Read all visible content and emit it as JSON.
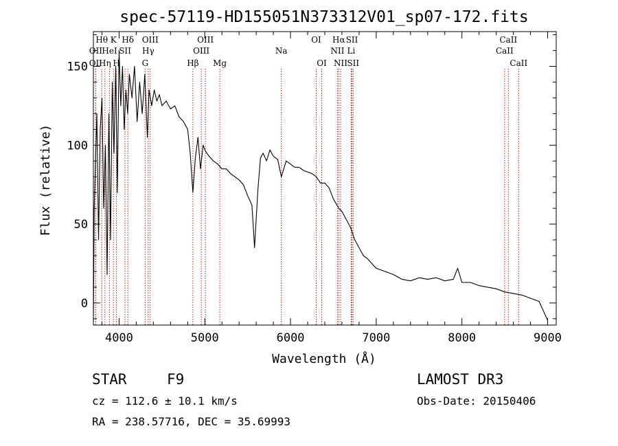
{
  "chart_data": {
    "type": "line",
    "title": "spec-57119-HD155051N373312V01_sp07-172.fits",
    "xlabel": "Wavelength (Å)",
    "ylabel": "Flux (relative)",
    "xlim": [
      3700,
      9100
    ],
    "ylim": [
      -14,
      172
    ],
    "xticks": [
      4000,
      5000,
      6000,
      7000,
      8000,
      9000
    ],
    "yticks": [
      0,
      50,
      100,
      150
    ],
    "series": [
      {
        "name": "flux",
        "x": [
          3700,
          3710,
          3725,
          3740,
          3760,
          3780,
          3800,
          3820,
          3840,
          3860,
          3880,
          3900,
          3920,
          3940,
          3960,
          3980,
          4000,
          4020,
          4040,
          4060,
          4080,
          4100,
          4120,
          4150,
          4180,
          4210,
          4240,
          4270,
          4300,
          4330,
          4350,
          4380,
          4410,
          4440,
          4470,
          4500,
          4550,
          4600,
          4650,
          4700,
          4750,
          4800,
          4830,
          4861,
          4890,
          4920,
          4950,
          4980,
          5010,
          5050,
          5100,
          5150,
          5200,
          5250,
          5300,
          5350,
          5400,
          5450,
          5500,
          5550,
          5580,
          5620,
          5650,
          5680,
          5720,
          5760,
          5800,
          5850,
          5893,
          5950,
          6000,
          6050,
          6100,
          6150,
          6200,
          6250,
          6300,
          6350,
          6400,
          6450,
          6500,
          6563,
          6600,
          6650,
          6700,
          6750,
          6800,
          6850,
          6900,
          6950,
          7000,
          7100,
          7200,
          7300,
          7400,
          7500,
          7600,
          7700,
          7800,
          7900,
          7950,
          8000,
          8100,
          8200,
          8300,
          8400,
          8500,
          8600,
          8700,
          8800,
          8900,
          8950,
          9000
        ],
        "y": [
          -12,
          60,
          90,
          120,
          40,
          110,
          130,
          60,
          100,
          18,
          120,
          40,
          140,
          95,
          150,
          70,
          160,
          125,
          150,
          110,
          135,
          120,
          145,
          130,
          150,
          115,
          140,
          120,
          145,
          105,
          135,
          125,
          135,
          128,
          132,
          125,
          128,
          123,
          125,
          118,
          115,
          110,
          95,
          70,
          92,
          105,
          85,
          100,
          96,
          93,
          90,
          88,
          85,
          85,
          82,
          80,
          78,
          75,
          68,
          62,
          35,
          72,
          92,
          95,
          90,
          97,
          93,
          91,
          80,
          90,
          88,
          86,
          86,
          84,
          83,
          82,
          80,
          76,
          76,
          73,
          66,
          60,
          58,
          53,
          48,
          40,
          35,
          30,
          28,
          25,
          22,
          20,
          18,
          15,
          14,
          16,
          15,
          16,
          14,
          15,
          22,
          13,
          13,
          11,
          10,
          9,
          7,
          6,
          5,
          3,
          1,
          -5,
          -11
        ]
      }
    ],
    "annotations": [
      {
        "label": "Hθ",
        "x": 3798,
        "row": 1
      },
      {
        "label": "OII",
        "x": 3727,
        "row": 2
      },
      {
        "label": "OII",
        "x": 3727,
        "row": 3
      },
      {
        "label": "HeI",
        "x": 3889,
        "row": 2
      },
      {
        "label": "Hη",
        "x": 3835,
        "row": 3
      },
      {
        "label": "K",
        "x": 3934,
        "row": 1
      },
      {
        "label": "SII",
        "x": 4069,
        "row": 2
      },
      {
        "label": "H",
        "x": 3969,
        "row": 3
      },
      {
        "label": "Hδ",
        "x": 4102,
        "row": 1
      },
      {
        "label": "OIII",
        "x": 4363,
        "row": 1
      },
      {
        "label": "Hγ",
        "x": 4340,
        "row": 2
      },
      {
        "label": "G",
        "x": 4304,
        "row": 3
      },
      {
        "label": "Hβ",
        "x": 4861,
        "row": 3
      },
      {
        "label": "OIII",
        "x": 5007,
        "row": 1
      },
      {
        "label": "OIII",
        "x": 4959,
        "row": 2
      },
      {
        "label": "Mg",
        "x": 5175,
        "row": 3
      },
      {
        "label": "Na",
        "x": 5893,
        "row": 2
      },
      {
        "label": "OI",
        "x": 6300,
        "row": 1
      },
      {
        "label": "OI",
        "x": 6364,
        "row": 3
      },
      {
        "label": "Hα",
        "x": 6563,
        "row": 1
      },
      {
        "label": "SII",
        "x": 6717,
        "row": 1
      },
      {
        "label": "NII",
        "x": 6548,
        "row": 2
      },
      {
        "label": "Li",
        "x": 6708,
        "row": 2
      },
      {
        "label": "NII",
        "x": 6584,
        "row": 3
      },
      {
        "label": "SII",
        "x": 6731,
        "row": 3
      },
      {
        "label": "CaII",
        "x": 8542,
        "row": 1
      },
      {
        "label": "CaII",
        "x": 8498,
        "row": 2
      },
      {
        "label": "CaII",
        "x": 8662,
        "row": 3
      }
    ],
    "line_color": "#000000",
    "marker_color": "#b22222"
  },
  "info": {
    "object_class": "STAR",
    "subclass": "F9",
    "redshift": "cz = 112.6 ± 10.1 km/s",
    "coords": "RA = 238.57716, DEC =  35.69993",
    "survey": "LAMOST DR3",
    "obs_date": "Obs-Date: 20150406"
  }
}
